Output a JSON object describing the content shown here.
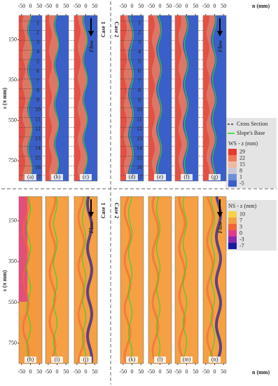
{
  "chart_data": {
    "type": "heatmap-panels",
    "ylabel": "s (π mm)",
    "xlabel": "n (mm)",
    "ylim": [
      30,
      850
    ],
    "yticks": [
      150,
      350,
      550,
      750
    ],
    "xlim": [
      -65,
      65
    ],
    "xticks": [
      -50,
      0,
      50
    ],
    "cases": [
      "Case 1",
      "Case 2"
    ],
    "panels_top": [
      "(a)",
      "(b)",
      "(c)",
      "(d)",
      "(e)",
      "(f)",
      "(g)"
    ],
    "panels_bottom": [
      "(h)",
      "(i)",
      "(j)",
      "(k)",
      "(l)",
      "(m)",
      "(n)"
    ],
    "cross_sections": [
      "1",
      "2",
      "3",
      "4",
      "5",
      "6",
      "7",
      "8",
      "9",
      "10",
      "11",
      "12",
      "13",
      "14",
      "15",
      "16",
      "17"
    ],
    "flow": "Flow",
    "legend": {
      "cross_section": "Cross Section",
      "slopes_base": "Slope's Base",
      "cross_section_color": "#333333",
      "slopes_base_color": "#22dd22"
    },
    "ws": {
      "title": "WS - z (mm)",
      "ticks": [
        29,
        22,
        15,
        8,
        1,
        -5
      ],
      "colors": [
        "#e8392e",
        "#f07a5a",
        "#f2b8a0",
        "#c8c8d8",
        "#6d8fd8",
        "#3a5fc8"
      ]
    },
    "ns": {
      "title": "NS - z (mm)",
      "ticks": [
        10,
        7,
        3,
        0,
        -3,
        -7
      ],
      "colors": [
        "#f7d046",
        "#f5a043",
        "#f0663a",
        "#e03c8a",
        "#8a2ab0",
        "#1a1aa0"
      ]
    }
  }
}
